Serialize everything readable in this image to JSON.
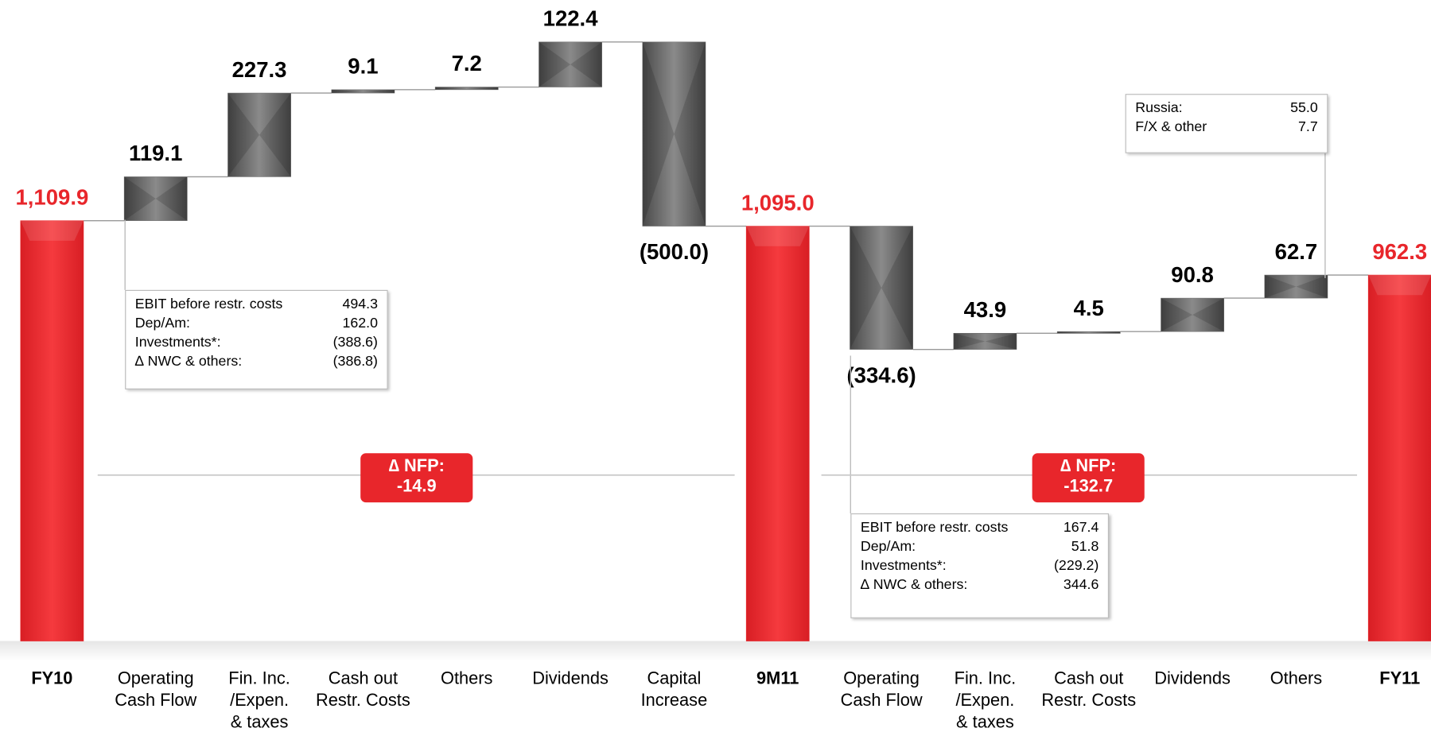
{
  "chart_data": {
    "type": "waterfall",
    "categories": [
      "FY10",
      "Operating\nCash Flow",
      "Fin. Inc.\n/Expen.\n& taxes",
      "Cash out\nRestr. Costs",
      "Others",
      "Dividends",
      "Capital\nIncrease",
      "9M11",
      "Operating\nCash Flow",
      "Fin. Inc.\n/Expen.\n& taxes",
      "Cash out\nRestr. Costs",
      "Dividends",
      "Others",
      "FY11"
    ],
    "values": [
      1109.9,
      119.1,
      227.3,
      9.1,
      7.2,
      122.4,
      -500.0,
      1095.0,
      -334.6,
      43.9,
      4.5,
      90.8,
      62.7,
      962.3
    ],
    "value_labels": [
      "1,109.9",
      "119.1",
      "227.3",
      "9.1",
      "7.2",
      "122.4",
      "(500.0)",
      "1,095.0",
      "(334.6)",
      "43.9",
      "4.5",
      "90.8",
      "62.7",
      "962.3"
    ],
    "bar_types": [
      "total",
      "step",
      "step",
      "step",
      "step",
      "step",
      "step",
      "total",
      "step",
      "step",
      "step",
      "step",
      "step",
      "total"
    ],
    "total_color": "#e8262b",
    "step_color": "#6e6e6e",
    "annotations": [
      {
        "rows": [
          {
            "label": "EBIT before restr. costs",
            "value": 494.3
          },
          {
            "label": "Dep/Am:",
            "value": 162.0,
            "value_label": "162.0"
          },
          {
            "label": "Investments*:",
            "value": -388.6,
            "value_label": "(388.6)"
          },
          {
            "label": "∆ NWC & others:",
            "value": -386.8,
            "value_label": "(386.8)"
          }
        ]
      },
      {
        "rows": [
          {
            "label": "EBIT before restr. costs",
            "value": 167.4
          },
          {
            "label": "Dep/Am:",
            "value": 51.8
          },
          {
            "label": "Investments*:",
            "value": -229.2,
            "value_label": "(229.2)"
          },
          {
            "label": "∆ NWC & others:",
            "value": 344.6
          }
        ]
      },
      {
        "rows": [
          {
            "label": "Russia:",
            "value": 55.0,
            "value_label": "55.0"
          },
          {
            "label": "F/X & other",
            "value": 7.7
          }
        ]
      }
    ],
    "nfp": [
      {
        "label": "∆ NFP:",
        "value": -14.9
      },
      {
        "label": "∆ NFP:",
        "value": -132.7
      }
    ]
  }
}
